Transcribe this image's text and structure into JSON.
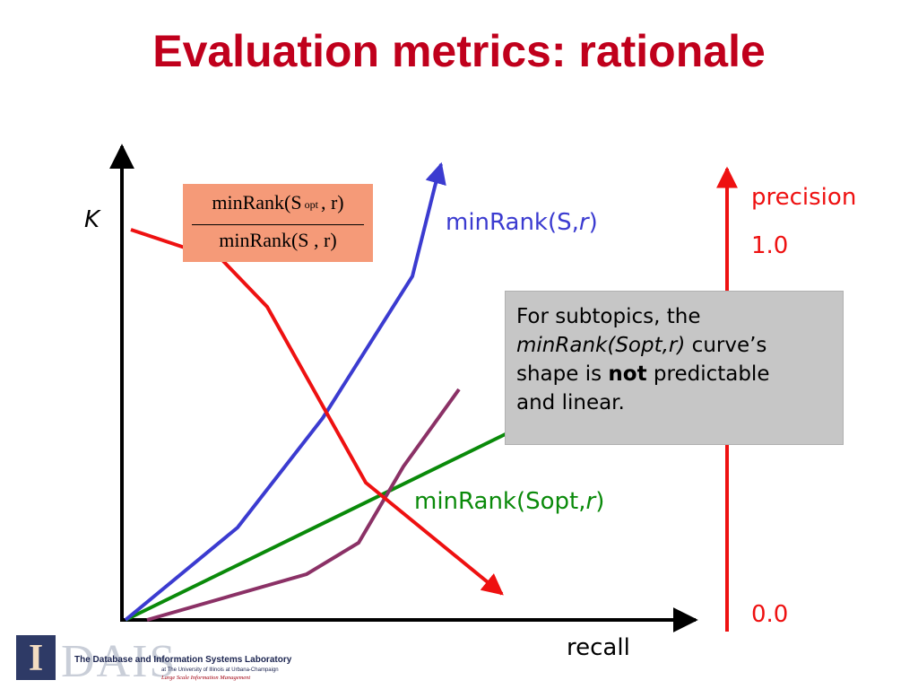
{
  "slide": {
    "title": "Evaluation metrics: rationale"
  },
  "axes": {
    "y_label": "K",
    "x_label": "recall",
    "precision_label": "precision",
    "precision_top": "1.0",
    "precision_bottom": "0.0"
  },
  "formula": {
    "numerator_prefix": "minRank(S",
    "numerator_sub": "opt",
    "numerator_suffix": ", r)",
    "denominator": "minRank(S , r)"
  },
  "curve_labels": {
    "minrank_s_prefix": "minRank(S,",
    "minrank_s_var": "r",
    "minrank_s_suffix": ")",
    "minrank_sopt_prefix": "minRank(Sopt,",
    "minrank_sopt_var": "r",
    "minrank_sopt_suffix": ")"
  },
  "note": {
    "line1": "For subtopics,  the",
    "emph": "minRank(Sopt,r)",
    "line2_rest": " curve’s",
    "line3_pre": "shape is ",
    "bold": "not",
    "line3_post": " predictable",
    "line4": "and linear."
  },
  "logo": {
    "mark": "I",
    "name": "DAIS",
    "lab_name": "The Database and Information Systems Laboratory",
    "affiliation": "at The University of Illinois at Urbana-Champaign",
    "tagline": "Large Scale Information Management"
  },
  "colors": {
    "title": "#c0001c",
    "red_curve": "#ee1111",
    "blue_curve": "#3b3bd0",
    "green_curve": "#0a8a0a",
    "purple_curve": "#8b3166",
    "axis": "#000000",
    "formula_bg": "#f59a78",
    "note_bg": "#c6c6c6"
  }
}
